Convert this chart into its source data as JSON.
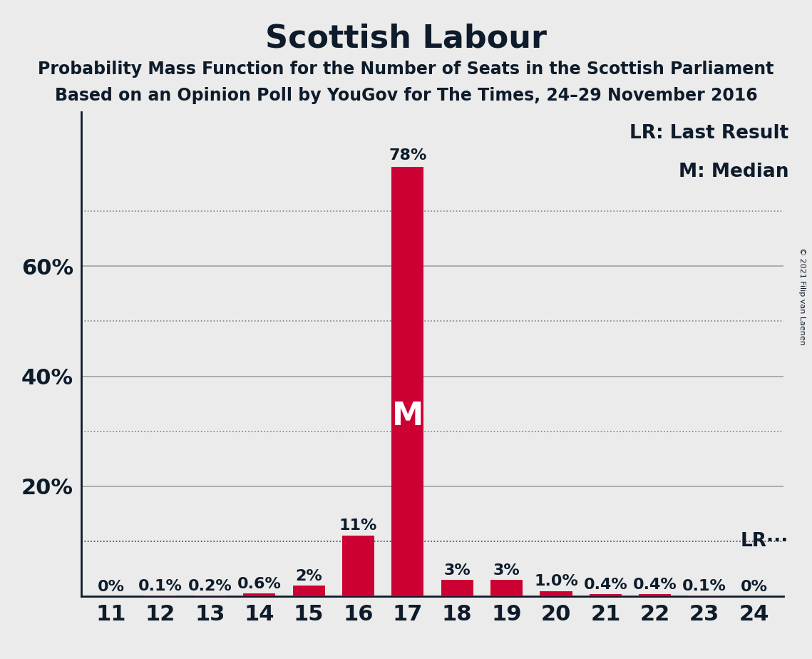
{
  "title": "Scottish Labour",
  "subtitle1": "Probability Mass Function for the Number of Seats in the Scottish Parliament",
  "subtitle2": "Based on an Opinion Poll by YouGov for The Times, 24–29 November 2016",
  "copyright": "© 2021 Filip van Laenen",
  "categories": [
    11,
    12,
    13,
    14,
    15,
    16,
    17,
    18,
    19,
    20,
    21,
    22,
    23,
    24
  ],
  "values": [
    0.0,
    0.1,
    0.2,
    0.6,
    2.0,
    11.0,
    78.0,
    3.0,
    3.0,
    1.0,
    0.4,
    0.4,
    0.1,
    0.0
  ],
  "labels": [
    "0%",
    "0.1%",
    "0.2%",
    "0.6%",
    "2%",
    "11%",
    "78%",
    "3%",
    "3%",
    "1.0%",
    "0.4%",
    "0.4%",
    "0.1%",
    "0%"
  ],
  "bar_color": "#CC0033",
  "background_color": "#EBEBEB",
  "text_color": "#0D1B2A",
  "lr_value": 10.0,
  "median_seat": 17,
  "solid_gridlines": [
    20,
    40,
    60
  ],
  "dotted_gridlines": [
    10,
    30,
    50,
    70
  ],
  "ytick_positions": [
    20,
    40,
    60
  ],
  "yticklabels": [
    "20%",
    "40%",
    "60%"
  ],
  "ylim": [
    0,
    88
  ],
  "title_fontsize": 32,
  "subtitle_fontsize": 17,
  "axis_fontsize": 22,
  "bar_label_fontsize": 16,
  "legend_fontsize": 19,
  "median_fontsize": 32
}
